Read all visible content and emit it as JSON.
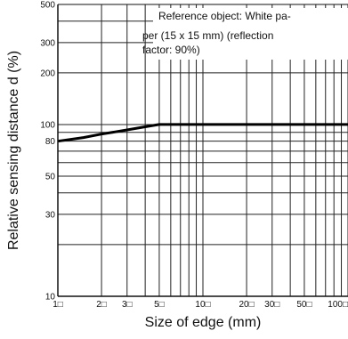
{
  "chart_data": {
    "type": "line",
    "xlabel": "Size of edge (mm)",
    "ylabel": "Relative sensing distance d (%)",
    "x_scale": "log",
    "y_scale": "log",
    "xlim": [
      1,
      100
    ],
    "ylim": [
      10,
      500
    ],
    "grid": true,
    "x_ticks": [
      {
        "value": 1,
        "label": "1□"
      },
      {
        "value": 2,
        "label": "2□"
      },
      {
        "value": 3,
        "label": "3□"
      },
      {
        "value": 5,
        "label": "5□"
      },
      {
        "value": 10,
        "label": "10□"
      },
      {
        "value": 20,
        "label": "20□"
      },
      {
        "value": 30,
        "label": "30□"
      },
      {
        "value": 50,
        "label": "50□"
      },
      {
        "value": 100,
        "label": "100□"
      }
    ],
    "y_ticks": [
      {
        "value": 10,
        "label": "10"
      },
      {
        "value": 30,
        "label": "30"
      },
      {
        "value": 50,
        "label": "50"
      },
      {
        "value": 80,
        "label": "80"
      },
      {
        "value": 100,
        "label": "100"
      },
      {
        "value": 200,
        "label": "200"
      },
      {
        "value": 300,
        "label": "300"
      },
      {
        "value": 500,
        "label": "500"
      }
    ],
    "annotation": {
      "lines": [
        "Reference object: White pa-",
        "per (15 x 15 mm) (reflection",
        "factor: 90%)"
      ]
    },
    "series": [
      {
        "x": [
          1,
          1.5,
          2,
          3,
          4,
          5,
          7,
          10,
          20,
          50,
          100
        ],
        "y": [
          80,
          84,
          88,
          93,
          97,
          100,
          100,
          100,
          100,
          100,
          100
        ]
      }
    ]
  }
}
